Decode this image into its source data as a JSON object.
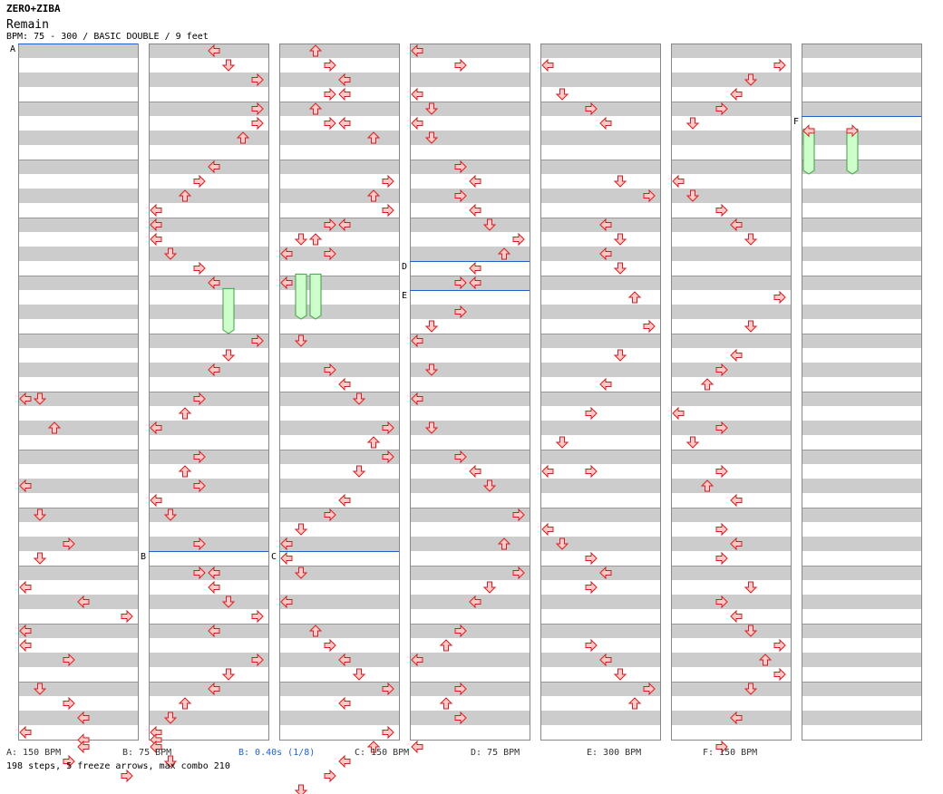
{
  "header": {
    "artist": "ZERO+ZIBA",
    "title": "Remain",
    "meta": "BPM: 75 - 300 / BASIC DOUBLE / 9 feet"
  },
  "footer": {
    "legend": [
      {
        "text": "A: 150 BPM",
        "color": "#333333"
      },
      {
        "text": "B: 75 BPM",
        "color": "#333333"
      },
      {
        "text": "B: 0.40s (1/8)",
        "color": "#1f62c8"
      },
      {
        "text": "C: 150 BPM",
        "color": "#333333"
      },
      {
        "text": "D: 75 BPM",
        "color": "#333333"
      },
      {
        "text": "E: 300 BPM",
        "color": "#333333"
      },
      {
        "text": "F: 150 BPM",
        "color": "#333333"
      }
    ],
    "summary": "198 steps, 5 freeze arrows, max combo 210"
  },
  "colors": {
    "stripe": "#cccccc",
    "border": "#888888",
    "arrow_fill": "#ffc8c8",
    "arrow_stroke": "#d02020",
    "freeze_fill": "#ccffcc",
    "freeze_stroke": "#40a040",
    "marker_line": "#1f62c8",
    "blue_arrow": "#6aa0e8"
  },
  "chart_data": {
    "type": "table",
    "columns": 7,
    "measures_per_column": 12,
    "lanes": 8,
    "lane_directions": [
      "left",
      "down",
      "up",
      "right",
      "left",
      "down",
      "up",
      "right"
    ],
    "markers": [
      {
        "label": "A",
        "column": 0,
        "measure": 0
      },
      {
        "label": "B",
        "column": 1,
        "measure": 8.75
      },
      {
        "label": "C",
        "column": 2,
        "measure": 8.75
      },
      {
        "label": "D",
        "column": 3,
        "measure": 3.75
      },
      {
        "label": "E",
        "column": 3,
        "measure": 4.25
      },
      {
        "label": "F",
        "column": 6,
        "measure": 1.25
      }
    ],
    "freeze_arrows": [
      {
        "column": 1,
        "lane": 5,
        "start": 4.13,
        "end": 5.0
      },
      {
        "column": 2,
        "lane": 1,
        "start": 3.88,
        "end": 4.75
      },
      {
        "column": 2,
        "lane": 2,
        "start": 3.88,
        "end": 4.75
      },
      {
        "column": 6,
        "lane": 0,
        "start": 1.38,
        "end": 2.25
      },
      {
        "column": 6,
        "lane": 3,
        "start": 1.38,
        "end": 2.25
      }
    ],
    "steps": [
      [
        [
          6,
          1,
          0.0
        ],
        [
          6,
          0,
          0.0
        ],
        [
          6.5,
          2,
          0.0
        ],
        [
          7.5,
          0,
          0.0
        ],
        [
          8,
          1,
          0.0
        ],
        [
          8.5,
          3,
          0.0
        ],
        [
          8.75,
          1,
          0.0
        ],
        [
          9.25,
          0,
          0.0
        ],
        [
          9.5,
          4,
          0.0
        ],
        [
          9.75,
          7,
          0.0
        ],
        [
          10,
          0,
          0.0
        ],
        [
          10.25,
          0,
          0.0
        ],
        [
          10.5,
          3,
          0.0
        ],
        [
          11,
          1,
          0.0
        ],
        [
          11.25,
          3,
          0.0
        ],
        [
          11.5,
          4,
          0.0
        ],
        [
          11.75,
          0,
          0.0
        ],
        [
          11.88,
          4,
          0.0
        ],
        [
          12,
          4,
          0.0
        ],
        [
          12.25,
          3,
          0.0
        ],
        [
          12.5,
          7,
          0.0
        ]
      ],
      [
        [
          0,
          4,
          0.0
        ],
        [
          0.25,
          5,
          0.0
        ],
        [
          0.5,
          7,
          0.0
        ],
        [
          1,
          7,
          0.0
        ],
        [
          1.25,
          7,
          0.0
        ],
        [
          1.5,
          6,
          0.0
        ],
        [
          2,
          4,
          0.0
        ],
        [
          2.25,
          3,
          0.0
        ],
        [
          2.5,
          2,
          0.0
        ],
        [
          2.75,
          0,
          0.0
        ],
        [
          3,
          0,
          0.0
        ],
        [
          3.25,
          0,
          0.0
        ],
        [
          3.5,
          1,
          0.0
        ],
        [
          3.75,
          3,
          0.0
        ],
        [
          4,
          4,
          0.0
        ],
        [
          5,
          7,
          0.0
        ],
        [
          5.25,
          5,
          0.0
        ],
        [
          5.5,
          4,
          0.0
        ],
        [
          6,
          3,
          0.0
        ],
        [
          6.25,
          2,
          0.0
        ],
        [
          6.5,
          0,
          0.0
        ],
        [
          7,
          3,
          0.0
        ],
        [
          7.25,
          2,
          0.0
        ],
        [
          7.5,
          3,
          0.0
        ],
        [
          7.75,
          0,
          0.0
        ],
        [
          8,
          1,
          0.0
        ],
        [
          8.5,
          3,
          0.0
        ],
        [
          9,
          3,
          0.0
        ],
        [
          9,
          4,
          0.0
        ],
        [
          9.25,
          4,
          0.0
        ],
        [
          9.5,
          5,
          0.0
        ],
        [
          9.75,
          7,
          0.0
        ],
        [
          10,
          4,
          0.0
        ],
        [
          10.5,
          7,
          0.0
        ],
        [
          10.75,
          5,
          0.0
        ],
        [
          11,
          4,
          0.0
        ],
        [
          11.25,
          2,
          0.0
        ],
        [
          11.5,
          1,
          0.0
        ],
        [
          11.75,
          0,
          0.0
        ],
        [
          11.88,
          0,
          0.0
        ],
        [
          12,
          0,
          0.0
        ],
        [
          12.25,
          1,
          0.0
        ]
      ],
      [
        [
          0,
          2,
          0.0
        ],
        [
          0.25,
          3,
          0.0
        ],
        [
          0.5,
          4,
          0.0
        ],
        [
          0.75,
          3,
          0.0
        ],
        [
          0.75,
          4,
          0.0
        ],
        [
          1,
          2,
          0.0
        ],
        [
          1.25,
          3,
          0.0
        ],
        [
          1.25,
          4,
          0.0
        ],
        [
          1.5,
          6,
          0.0
        ],
        [
          2.25,
          7,
          0.0
        ],
        [
          2.5,
          6,
          0.0
        ],
        [
          2.75,
          7,
          0.0
        ],
        [
          3,
          3,
          0.0
        ],
        [
          3,
          4,
          0.0
        ],
        [
          3.25,
          1,
          0.0
        ],
        [
          3.25,
          2,
          0.0
        ],
        [
          3.5,
          0,
          0.0
        ],
        [
          3.5,
          3,
          0.0
        ],
        [
          4,
          0,
          0.0
        ],
        [
          5,
          1,
          0.0
        ],
        [
          5.5,
          3,
          0.0
        ],
        [
          5.75,
          4,
          0.0
        ],
        [
          6,
          5,
          0.0
        ],
        [
          6.5,
          7,
          0.0
        ],
        [
          6.75,
          6,
          0.0
        ],
        [
          7,
          7,
          0.0
        ],
        [
          7.25,
          5,
          0.0
        ],
        [
          7.75,
          4,
          0.0
        ],
        [
          8,
          3,
          0.0
        ],
        [
          8.25,
          1,
          0.0
        ],
        [
          8.5,
          0,
          0.0
        ],
        [
          8.75,
          0,
          0.0
        ],
        [
          9,
          1,
          0.0
        ],
        [
          9.5,
          0,
          0.0
        ],
        [
          10,
          2,
          0.0
        ],
        [
          10.25,
          3,
          0.0
        ],
        [
          10.5,
          4,
          0.0
        ],
        [
          10.75,
          5,
          0.0
        ],
        [
          11,
          7,
          0.0
        ],
        [
          11.25,
          4,
          0.0
        ],
        [
          11.75,
          7,
          0.0
        ],
        [
          12,
          6,
          0.0
        ],
        [
          12.25,
          4,
          0.0
        ],
        [
          12.5,
          3,
          0.0
        ],
        [
          12.75,
          1,
          0.0
        ]
      ],
      [
        [
          0,
          0,
          0.0
        ],
        [
          0.25,
          3,
          0.0
        ],
        [
          0.75,
          0,
          0.0
        ],
        [
          1,
          1,
          0.0
        ],
        [
          1.25,
          0,
          0.0
        ],
        [
          1.5,
          1,
          0.0
        ],
        [
          2,
          3,
          0.0
        ],
        [
          2.25,
          4,
          0.0
        ],
        [
          2.5,
          3,
          0.0
        ],
        [
          2.75,
          4,
          0.0
        ],
        [
          3,
          5,
          0.0
        ],
        [
          3.25,
          7,
          0.0
        ],
        [
          3.5,
          6,
          0.0
        ],
        [
          3.75,
          4,
          0.0
        ],
        [
          4,
          3,
          0.0
        ],
        [
          4,
          4,
          0.0
        ],
        [
          4.5,
          3,
          0.0
        ],
        [
          4.75,
          1,
          0.0
        ],
        [
          5,
          0,
          0.0
        ],
        [
          5.5,
          1,
          0.0
        ],
        [
          6,
          0,
          0.0
        ],
        [
          6.5,
          1,
          0.0
        ],
        [
          7,
          3,
          0.0
        ],
        [
          7.25,
          4,
          0.0
        ],
        [
          7.5,
          5,
          0.0
        ],
        [
          8,
          7,
          0.0
        ],
        [
          8.5,
          6,
          0.0
        ],
        [
          9,
          7,
          0.0
        ],
        [
          9.25,
          5,
          0.0
        ],
        [
          9.5,
          4,
          0.0
        ],
        [
          10,
          3,
          0.0
        ],
        [
          10.25,
          2,
          0.0
        ],
        [
          10.5,
          0,
          0.0
        ],
        [
          11,
          3,
          0.0
        ],
        [
          11.25,
          2,
          0.0
        ],
        [
          11.5,
          3,
          0.0
        ],
        [
          12,
          0,
          0.0
        ]
      ],
      [
        [
          0.25,
          0,
          0.0
        ],
        [
          0.75,
          1,
          0.0
        ],
        [
          1,
          3,
          0.0
        ],
        [
          1.25,
          4,
          0.0
        ],
        [
          2.25,
          5,
          0.0
        ],
        [
          2.5,
          7,
          0.0
        ],
        [
          3,
          4,
          0.0
        ],
        [
          3.25,
          5,
          0.0
        ],
        [
          3.5,
          4,
          0.0
        ],
        [
          3.75,
          5,
          0.0
        ],
        [
          4.25,
          6,
          0.0
        ],
        [
          4.75,
          7,
          0.0
        ],
        [
          5.25,
          5,
          0.0
        ],
        [
          5.75,
          4,
          0.0
        ],
        [
          6.25,
          3,
          0.0
        ],
        [
          6.75,
          1,
          0.0
        ],
        [
          7.25,
          0,
          0.0
        ],
        [
          7.25,
          3,
          0.0
        ],
        [
          8.25,
          0,
          0.0
        ],
        [
          8.5,
          1,
          0.0
        ],
        [
          8.75,
          3,
          0.0
        ],
        [
          9,
          4,
          0.0
        ],
        [
          9.25,
          3,
          0.0
        ],
        [
          10.25,
          3,
          0.0
        ],
        [
          10.5,
          4,
          0.0
        ],
        [
          10.75,
          5,
          0.0
        ],
        [
          11,
          7,
          0.0
        ],
        [
          11.25,
          6,
          0.0
        ]
      ],
      [
        [
          0.25,
          7,
          0.0
        ],
        [
          0.5,
          5,
          0.0
        ],
        [
          0.75,
          4,
          0.0
        ],
        [
          1,
          3,
          0.0
        ],
        [
          1.25,
          1,
          0.0
        ],
        [
          2.25,
          0,
          0.0
        ],
        [
          2.5,
          1,
          0.0
        ],
        [
          2.75,
          3,
          0.0
        ],
        [
          3,
          4,
          0.0
        ],
        [
          3.25,
          5,
          0.0
        ],
        [
          4.25,
          7,
          0.0
        ],
        [
          4.75,
          5,
          0.0
        ],
        [
          5.25,
          4,
          0.0
        ],
        [
          5.5,
          3,
          0.0
        ],
        [
          5.75,
          2,
          0.0
        ],
        [
          6.25,
          0,
          0.0
        ],
        [
          6.5,
          3,
          0.0
        ],
        [
          6.75,
          1,
          0.0
        ],
        [
          7.25,
          3,
          0.0
        ],
        [
          7.5,
          2,
          0.0
        ],
        [
          7.75,
          4,
          0.0
        ],
        [
          8.25,
          3,
          0.0
        ],
        [
          8.5,
          4,
          0.0
        ],
        [
          8.75,
          3,
          0.0
        ],
        [
          9.25,
          5,
          0.0
        ],
        [
          9.5,
          3,
          0.0
        ],
        [
          9.75,
          4,
          0.0
        ],
        [
          10,
          5,
          0.0
        ],
        [
          10.25,
          7,
          0.0
        ],
        [
          10.5,
          6,
          0.0
        ],
        [
          10.75,
          7,
          0.0
        ],
        [
          11,
          5,
          0.0
        ],
        [
          11.5,
          4,
          0.0
        ],
        [
          12,
          3,
          0.0
        ]
      ],
      [
        [
          1.38,
          0,
          0.0
        ],
        [
          1.38,
          3,
          0.0
        ]
      ]
    ]
  }
}
